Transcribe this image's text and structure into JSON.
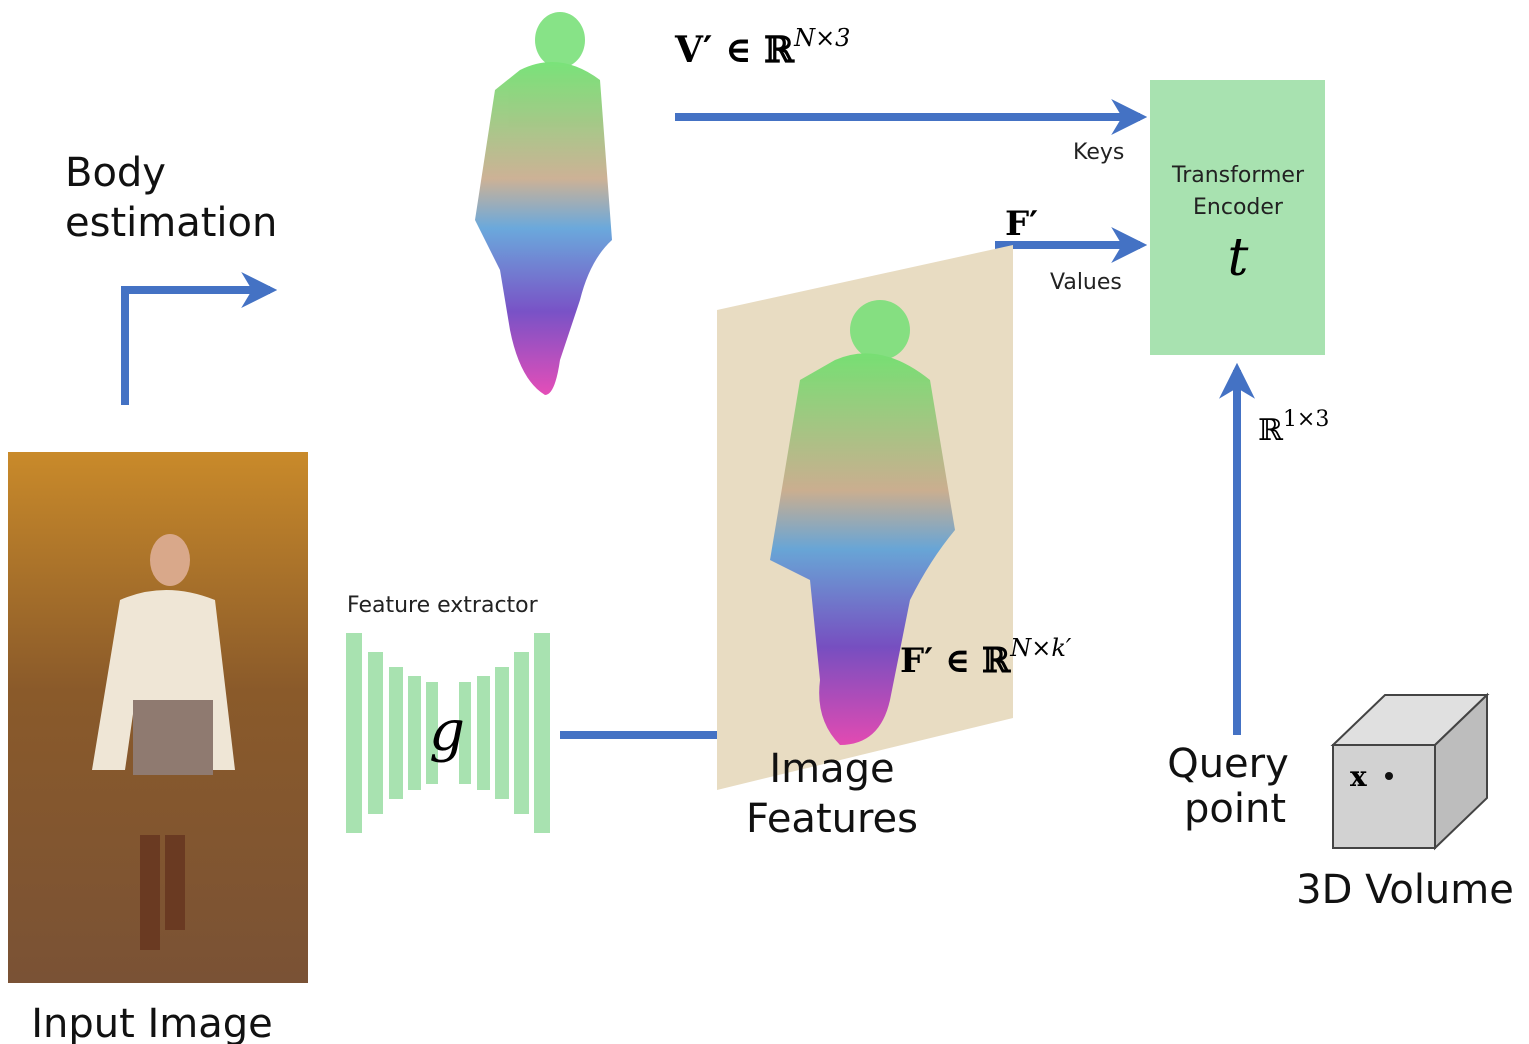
{
  "body_estimation": {
    "lines": [
      "Body",
      "estimation"
    ]
  },
  "vertices_label": {
    "base": "V′ ∈ ℝ",
    "sup": "N×3"
  },
  "keys_label": "Keys",
  "values_label": "Values",
  "transformer": {
    "lines": [
      "Transformer",
      "Encoder"
    ],
    "symbol": "t"
  },
  "features_short_label": "F′",
  "features_label": {
    "base": "F′ ∈ ℝ",
    "sup": "N×k′"
  },
  "image_features": {
    "lines": [
      "Image",
      "Features"
    ]
  },
  "feature_extractor": {
    "label": "Feature extractor",
    "symbol": "g"
  },
  "input_image": "Input Image",
  "query_dim_label": {
    "base": "ℝ",
    "sup": "1×3"
  },
  "query_point": {
    "lines": [
      "Query",
      "point"
    ]
  },
  "volume": {
    "point": "x",
    "label": "3D Volume"
  }
}
